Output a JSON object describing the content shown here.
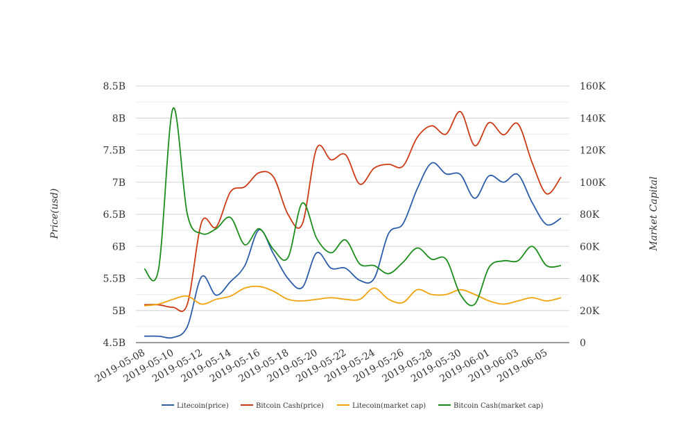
{
  "chart_data": {
    "type": "line",
    "title": "",
    "xlabel": "",
    "ylabel_left": "Price(usd)",
    "ylabel_right": "Market Capital",
    "x": [
      "2019-05-08",
      "2019-05-09",
      "2019-05-10",
      "2019-05-11",
      "2019-05-12",
      "2019-05-13",
      "2019-05-14",
      "2019-05-15",
      "2019-05-16",
      "2019-05-17",
      "2019-05-18",
      "2019-05-19",
      "2019-05-20",
      "2019-05-21",
      "2019-05-22",
      "2019-05-23",
      "2019-05-24",
      "2019-05-25",
      "2019-05-26",
      "2019-05-27",
      "2019-05-28",
      "2019-05-29",
      "2019-05-30",
      "2019-05-31",
      "2019-06-01",
      "2019-06-02",
      "2019-06-03",
      "2019-06-04",
      "2019-06-05",
      "2019-06-06"
    ],
    "x_tick_labels": [
      "2019-05-08",
      "2019-05-10",
      "2019-05-12",
      "2019-05-14",
      "2019-05-16",
      "2019-05-18",
      "2019-05-20",
      "2019-05-22",
      "2019-05-24",
      "2019-05-26",
      "2019-05-28",
      "2019-05-30",
      "2019-06-01",
      "2019-06-03",
      "2019-06-05"
    ],
    "y_left": {
      "ticks": [
        "4.5B",
        "5B",
        "5.5B",
        "6B",
        "6.5B",
        "7B",
        "7.5B",
        "8B",
        "8.5B"
      ],
      "ylim": [
        4.5,
        8.5
      ],
      "unit": "B"
    },
    "y_right": {
      "ticks": [
        "0",
        "20K",
        "40K",
        "60K",
        "80K",
        "100K",
        "120K",
        "140K",
        "160K"
      ],
      "ylim": [
        0,
        160
      ],
      "unit": "K"
    },
    "grid": true,
    "legend_position": "bottom",
    "series": [
      {
        "name": "Litecoin(price)",
        "axis": "left",
        "color": "#2a5caa",
        "values": [
          4.6,
          4.6,
          4.58,
          4.75,
          5.53,
          5.24,
          5.45,
          5.7,
          6.26,
          5.88,
          5.5,
          5.36,
          5.9,
          5.66,
          5.66,
          5.47,
          5.5,
          6.2,
          6.35,
          6.9,
          7.3,
          7.13,
          7.12,
          6.75,
          7.1,
          7.0,
          7.12,
          6.68,
          6.34,
          6.44
        ]
      },
      {
        "name": "Bitcoin Cash(price)",
        "axis": "left",
        "color": "#cc3a14",
        "values": [
          5.09,
          5.09,
          5.05,
          5.1,
          6.38,
          6.3,
          6.85,
          6.93,
          7.15,
          7.08,
          6.5,
          6.35,
          7.53,
          7.35,
          7.43,
          6.97,
          7.22,
          7.28,
          7.25,
          7.7,
          7.88,
          7.75,
          8.1,
          7.57,
          7.93,
          7.74,
          7.91,
          7.3,
          6.82,
          7.08
        ]
      },
      {
        "name": "Litecoin(market cap)",
        "axis": "right",
        "color": "#f0a30a",
        "values": [
          23,
          24,
          27,
          29,
          24,
          27,
          29,
          34,
          35,
          32,
          27,
          26,
          27,
          28,
          27,
          27,
          34,
          27,
          25,
          33,
          30,
          30,
          33,
          30,
          26,
          24,
          26,
          28,
          26,
          28
        ]
      },
      {
        "name": "Bitcoin Cash(market cap)",
        "axis": "right",
        "color": "#1a8c1a",
        "values": [
          46,
          46,
          146,
          80,
          68,
          71,
          78,
          61,
          71,
          58,
          53,
          87,
          65,
          56,
          64,
          49,
          48,
          43,
          50,
          59,
          52,
          52,
          30,
          24,
          47,
          51,
          51,
          60,
          48,
          48
        ]
      }
    ]
  }
}
